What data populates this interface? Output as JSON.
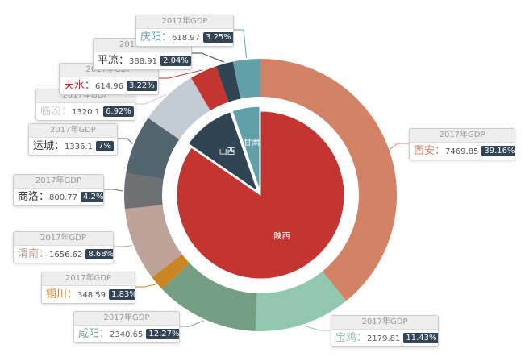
{
  "chart_data": {
    "type": "pie",
    "inner_series": [
      {
        "name": "陕西",
        "color": "#c23531"
      },
      {
        "name": "山西",
        "color": "#2f4554"
      },
      {
        "name": "甘肃",
        "color": "#61a0a8"
      }
    ],
    "outer_series": [
      {
        "name": "西安",
        "value": 7469.85,
        "percent": "39.16%",
        "color": "#d48265",
        "name_color": "#d48265"
      },
      {
        "name": "宝鸡",
        "value": 2179.81,
        "percent": "11.43%",
        "color": "#91c7ae",
        "name_color": "#91c7ae"
      },
      {
        "name": "咸阳",
        "value": 2340.65,
        "percent": "12.27%",
        "color": "#749f83",
        "name_color": "#749f83"
      },
      {
        "name": "铜川",
        "value": 348.59,
        "percent": "1.83%",
        "color": "#ca8622",
        "name_color": "#ca8622"
      },
      {
        "name": "渭南",
        "value": 1656.62,
        "percent": "8.68%",
        "color": "#bda29a",
        "name_color": "#bda29a"
      },
      {
        "name": "商洛",
        "value": 800.77,
        "percent": "4.2%",
        "color": "#6e7074",
        "name_color": "#333333"
      },
      {
        "name": "运城",
        "value": 1336.1,
        "percent": "7%",
        "color": "#546570",
        "name_color": "#333333"
      },
      {
        "name": "临汾",
        "value": 1320.1,
        "percent": "6.92%",
        "color": "#c4ccd3",
        "name_color": "#c4ccd3"
      },
      {
        "name": "天水",
        "value": 614.96,
        "percent": "3.22%",
        "color": "#c23531",
        "name_color": "#c23531"
      },
      {
        "name": "平凉",
        "value": 388.91,
        "percent": "2.04%",
        "color": "#2f4554",
        "name_color": "#333333"
      },
      {
        "name": "庆阳",
        "value": 618.97,
        "percent": "3.25%",
        "color": "#61a0a8",
        "name_color": "#61a0a8"
      }
    ],
    "label_header": "2017年GDP",
    "separator": "："
  }
}
